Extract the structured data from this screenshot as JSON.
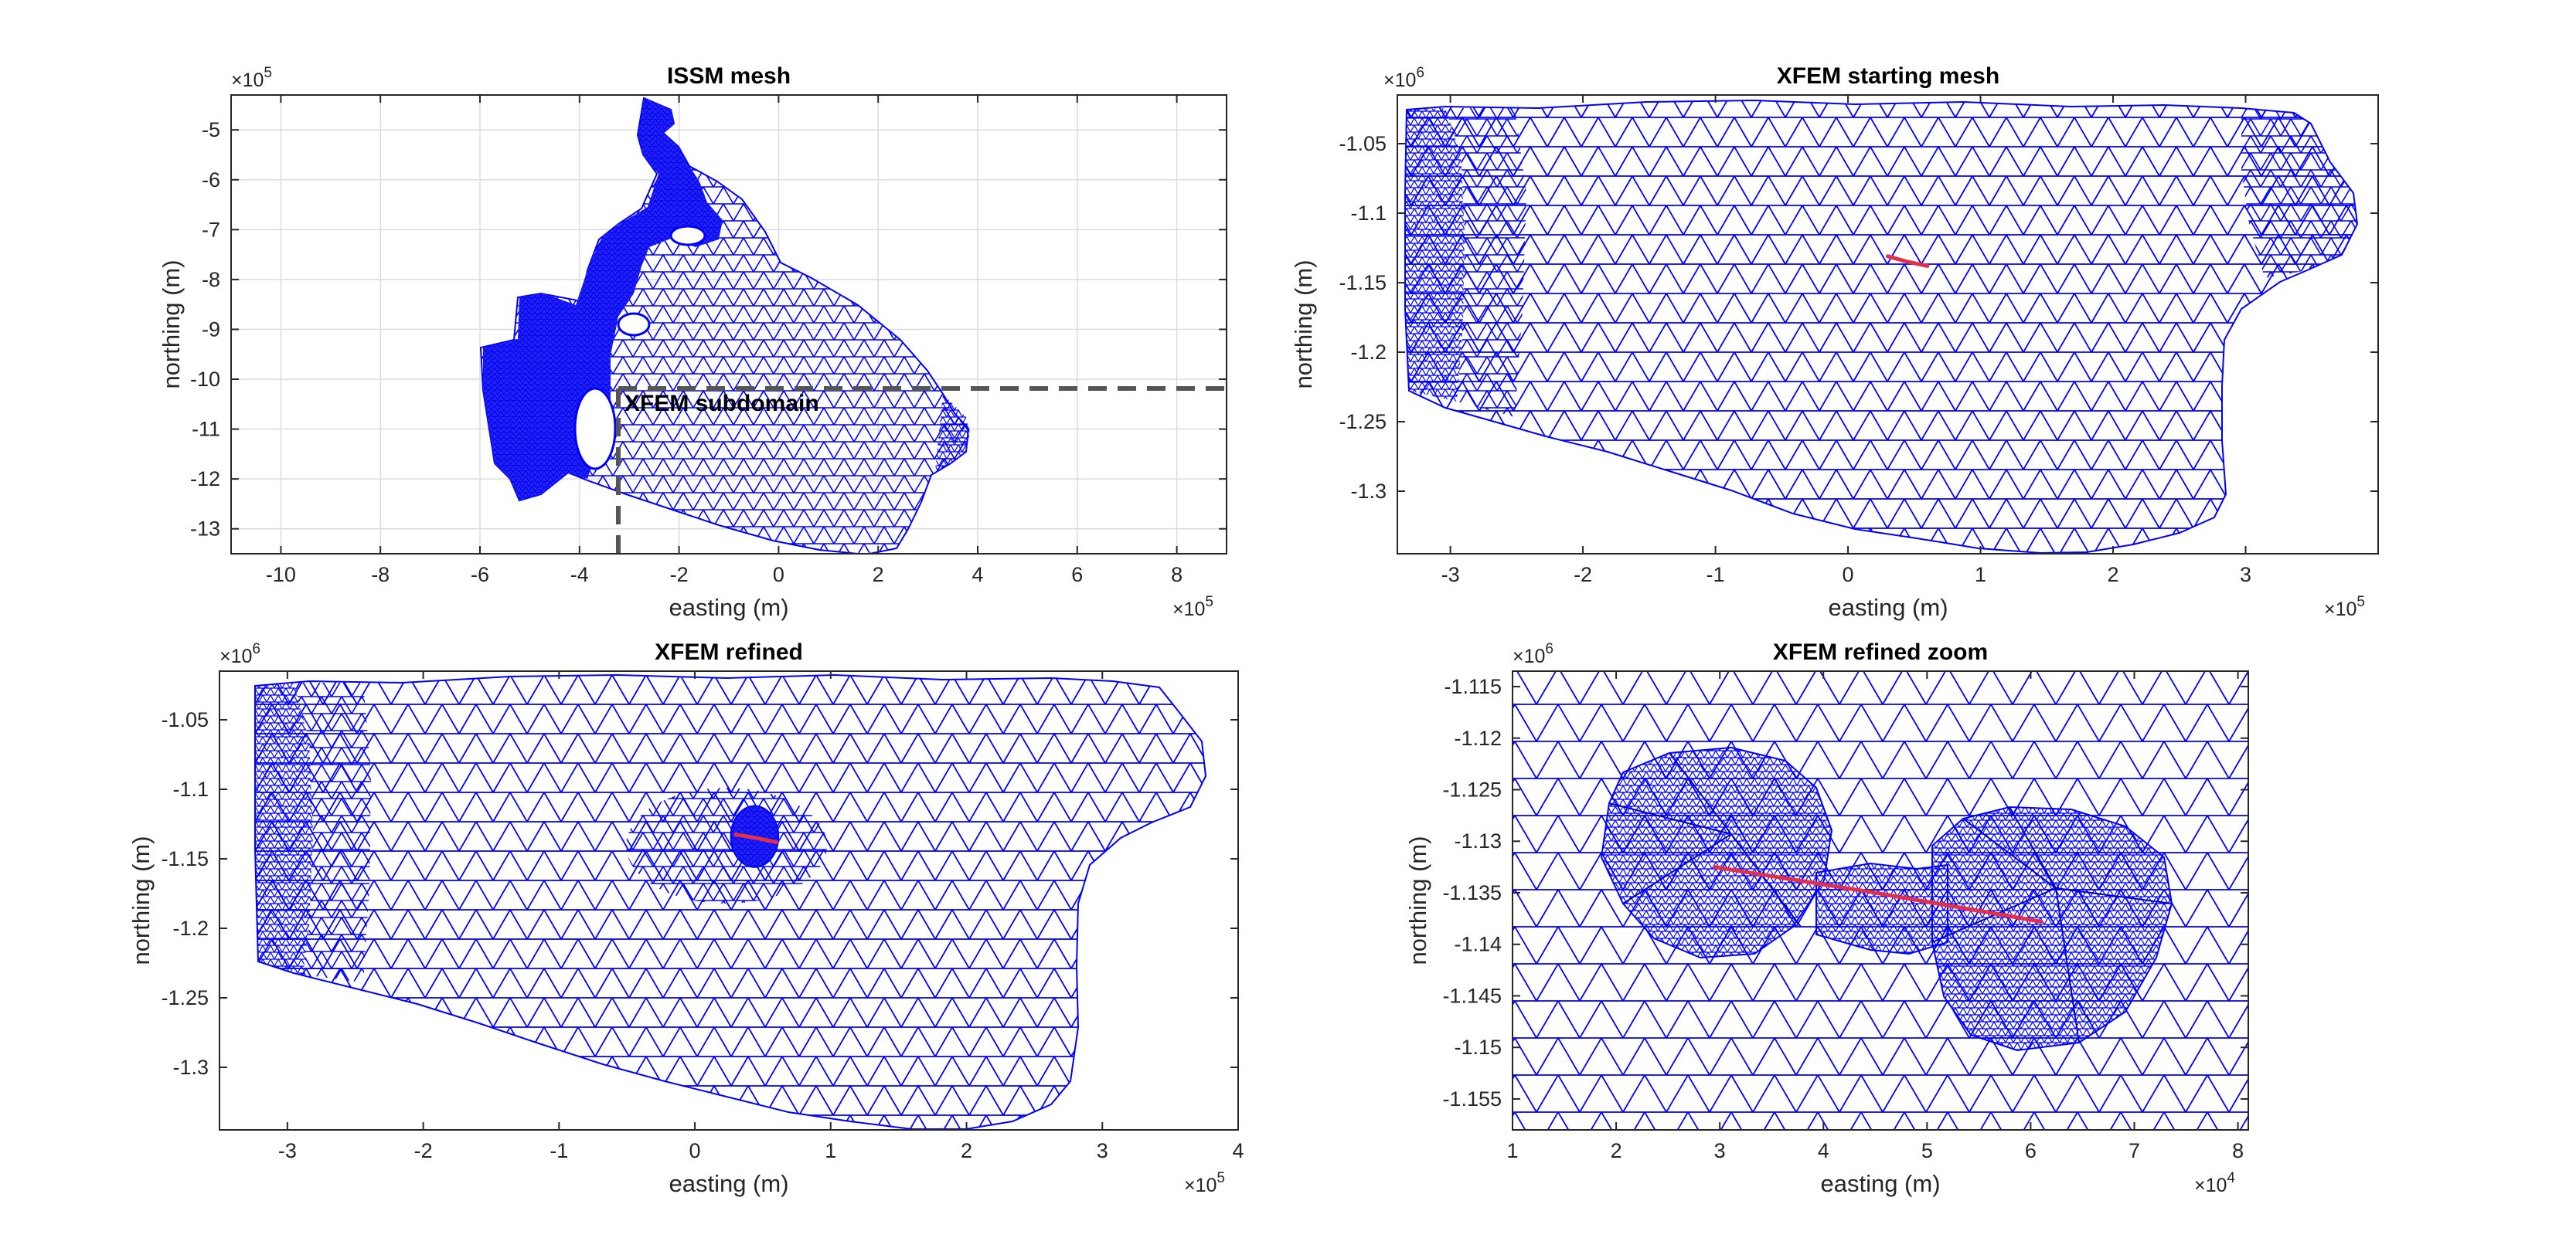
{
  "colors": {
    "mesh": "#0000ff",
    "crack": "#e0304a",
    "axis": "#262626",
    "grid": "#dcdcdc",
    "dash": "#555555"
  },
  "chart_data": [
    {
      "type": "mesh",
      "title": "ISSM mesh",
      "xlabel": "easting (m)",
      "ylabel": "northing (m)",
      "x_multiplier": "×10^5",
      "y_multiplier": "×10^5",
      "xlim": [
        -11,
        9
      ],
      "ylim": [
        -13.5,
        -4.3
      ],
      "x_scale": 100000,
      "y_scale": 100000,
      "xticks": [
        -10,
        -8,
        -6,
        -4,
        -2,
        0,
        2,
        4,
        6,
        8
      ],
      "yticks": [
        -5,
        -6,
        -7,
        -8,
        -9,
        -10,
        -11,
        -12,
        -13
      ],
      "grid": true,
      "annotation": "XFEM subdomain",
      "subdomain_box": {
        "x0": -3.2,
        "y1": -10.2
      }
    },
    {
      "type": "mesh",
      "title": "XFEM starting mesh",
      "xlabel": "easting (m)",
      "ylabel": "northing (m)",
      "x_multiplier": "×10^5",
      "y_multiplier": "×10^6",
      "xlim": [
        -3.4,
        4
      ],
      "ylim": [
        -1.345,
        -1.015
      ],
      "xticks": [
        -3,
        -2,
        -1,
        0,
        1,
        2,
        3
      ],
      "yticks": [
        -1.05,
        -1.1,
        -1.15,
        -1.2,
        -1.25,
        -1.3
      ],
      "grid": false,
      "crack": [
        [
          0.3,
          -1.131
        ],
        [
          0.45,
          -1.135
        ],
        [
          0.6,
          -1.138
        ]
      ]
    },
    {
      "type": "mesh",
      "title": "XFEM refined",
      "xlabel": "easting (m)",
      "ylabel": "northing (m)",
      "x_multiplier": "×10^5",
      "y_multiplier": "×10^6",
      "xlim": [
        -3.5,
        4
      ],
      "ylim": [
        -1.345,
        -1.015
      ],
      "xticks": [
        -3,
        -2,
        -1,
        0,
        1,
        2,
        3,
        4
      ],
      "yticks": [
        -1.05,
        -1.1,
        -1.15,
        -1.2,
        -1.25,
        -1.3
      ],
      "grid": false,
      "crack": [
        [
          0.3,
          -1.1325
        ],
        [
          0.45,
          -1.135
        ],
        [
          0.6,
          -1.138
        ]
      ],
      "refined_region": {
        "cx": 0.44,
        "cy": -1.134,
        "rx": 0.35,
        "ry": 0.022
      }
    },
    {
      "type": "mesh",
      "title": "XFEM refined zoom",
      "xlabel": "easting (m)",
      "ylabel": "northing (m)",
      "x_multiplier": "×10^4",
      "y_multiplier": "×10^6",
      "xlim": [
        1,
        8.1
      ],
      "ylim": [
        -1.158,
        -1.1135
      ],
      "xticks": [
        1,
        2,
        3,
        4,
        5,
        6,
        7,
        8
      ],
      "yticks": [
        -1.115,
        -1.12,
        -1.125,
        -1.13,
        -1.135,
        -1.14,
        -1.145,
        -1.15,
        -1.155
      ],
      "grid": false,
      "crack": [
        [
          2.95,
          -1.1325
        ],
        [
          4.5,
          -1.135
        ],
        [
          6.1,
          -1.1378
        ]
      ]
    }
  ]
}
